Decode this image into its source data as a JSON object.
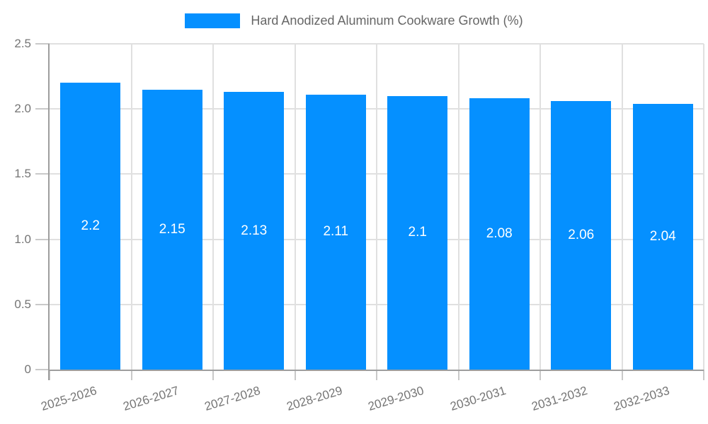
{
  "chart_data": {
    "type": "bar",
    "title": "Hard Anodized Aluminum Cookware Growth (%)",
    "xlabel": "",
    "ylabel": "",
    "categories": [
      "2025-2026",
      "2026-2027",
      "2027-2028",
      "2028-2029",
      "2029-2030",
      "2030-2031",
      "2031-2032",
      "2032-2033"
    ],
    "values": [
      2.2,
      2.15,
      2.13,
      2.11,
      2.1,
      2.08,
      2.06,
      2.04
    ],
    "value_labels": [
      "2.2",
      "2.15",
      "2.13",
      "2.11",
      "2.1",
      "2.08",
      "2.06",
      "2.04"
    ],
    "ylim": [
      0,
      2.5
    ],
    "yticks": [
      {
        "value": 0,
        "label": "0"
      },
      {
        "value": 0.5,
        "label": "0.5"
      },
      {
        "value": 1,
        "label": "1.0"
      },
      {
        "value": 1.5,
        "label": "1.5"
      },
      {
        "value": 2,
        "label": "2.0"
      },
      {
        "value": 2.5,
        "label": "2.5"
      }
    ],
    "legend_position": "top",
    "grid": true,
    "colors": {
      "bar": "#0590ff",
      "grid": "#e0e0e0",
      "tick": "#c9c9c9",
      "axis": "#9e9e9e",
      "tick_label": "#757575",
      "value_label": "#ffffff",
      "legend_text": "#666666",
      "background": "#ffffff"
    }
  }
}
